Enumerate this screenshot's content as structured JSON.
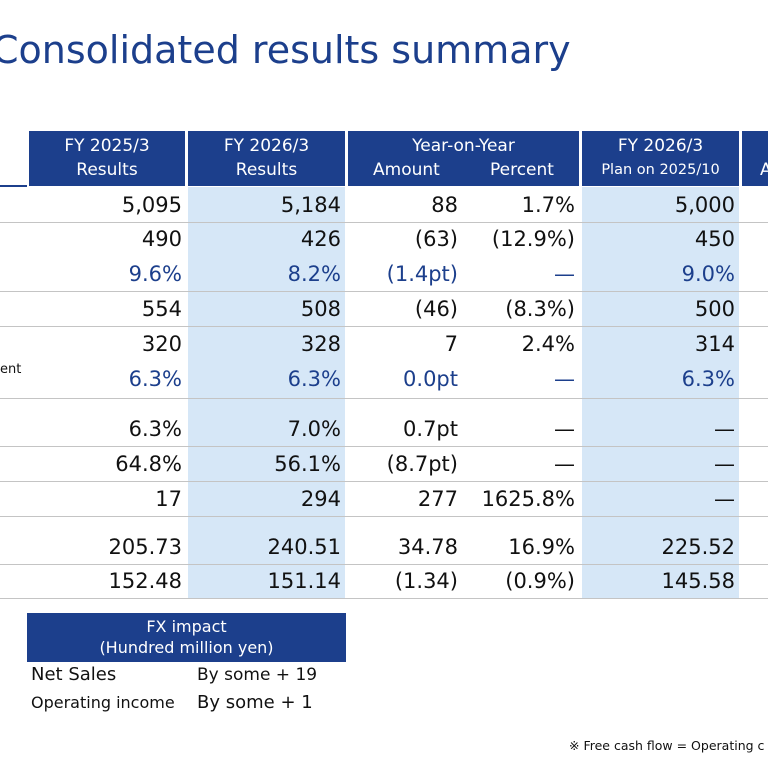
{
  "title": "Consolidated results summary",
  "table": {
    "headers": {
      "fy2025": {
        "line1": "FY 2025/3",
        "line2": "Results"
      },
      "fy2026": {
        "line1": "FY 2026/3",
        "line2": "Results"
      },
      "yoy": {
        "line1": "Year-on-Year",
        "amount": "Amount",
        "percent": "Percent"
      },
      "plan": {
        "line1": "FY 2026/3",
        "line2": "Plan on 2025/10"
      },
      "next": {
        "line2": "A"
      }
    },
    "rows": [
      {
        "label": "",
        "fy2025": "5,095",
        "fy2026": "5,184",
        "amount": "88",
        "percent": "1.7%",
        "plan": "5,000"
      },
      {
        "label": "",
        "fy2025": "490",
        "fy2026": "426",
        "amount": "(63)",
        "percent": "(12.9%)",
        "plan": "450"
      },
      {
        "label": "",
        "fy2025": "9.6%",
        "fy2026": "8.2%",
        "amount": "(1.4pt)",
        "percent": "—",
        "plan": "9.0%"
      },
      {
        "label": "",
        "fy2025": "554",
        "fy2026": "508",
        "amount": "(46)",
        "percent": "(8.3%)",
        "plan": "500"
      },
      {
        "label": "",
        "fy2025": "320",
        "fy2026": "328",
        "amount": "7",
        "percent": "2.4%",
        "plan": "314"
      },
      {
        "label": "ent",
        "fy2025": "6.3%",
        "fy2026": "6.3%",
        "amount": "0.0pt",
        "percent": "—",
        "plan": "6.3%"
      },
      {
        "label": "",
        "fy2025": "6.3%",
        "fy2026": "7.0%",
        "amount": "0.7pt",
        "percent": "—",
        "plan": "—"
      },
      {
        "label": "",
        "fy2025": "64.8%",
        "fy2026": "56.1%",
        "amount": "(8.7pt)",
        "percent": "—",
        "plan": "—"
      },
      {
        "label": "",
        "fy2025": "17",
        "fy2026": "294",
        "amount": "277",
        "percent": "1625.8%",
        "plan": "—"
      },
      {
        "label": "",
        "fy2025": "205.73",
        "fy2026": "240.51",
        "amount": "34.78",
        "percent": "16.9%",
        "plan": "225.52"
      },
      {
        "label": "",
        "fy2025": "152.48",
        "fy2026": "151.14",
        "amount": "(1.34)",
        "percent": "(0.9%)",
        "plan": "145.58"
      }
    ]
  },
  "fx": {
    "header_line1": "FX impact",
    "header_line2": "(Hundred million yen)",
    "rows": [
      {
        "label": "Net Sales",
        "value": "By some + 19"
      },
      {
        "label": "Operating income",
        "value": "By some + 1"
      }
    ]
  },
  "footnote": "※ Free cash flow = Operating c",
  "colors": {
    "header_blue": "#1c3f8c",
    "band_blue": "#d6e7f7"
  }
}
